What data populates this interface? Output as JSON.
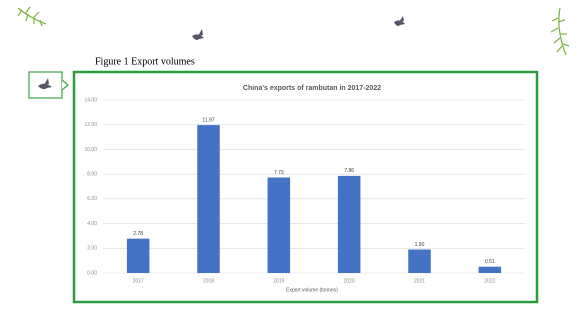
{
  "caption": "Figure 1 Export volumes",
  "chart_data": {
    "type": "bar",
    "title": "China's exports of rambutan in 2017-2022",
    "x_label": "Export volume (tonnes)",
    "categories": [
      "2017",
      "2018",
      "2019",
      "2020",
      "2021",
      "2022"
    ],
    "values": [
      2.78,
      11.97,
      7.73,
      7.86,
      1.9,
      0.51
    ],
    "value_labels": [
      "2.78",
      "11.97",
      "7.73",
      "7.86",
      "1.90",
      "0.51"
    ],
    "color": "#4472c4",
    "ylim": [
      0,
      14
    ],
    "yticks": [
      {
        "value": 0,
        "label": "0.00"
      },
      {
        "value": 2,
        "label": "2.00"
      },
      {
        "value": 4,
        "label": "4.00"
      },
      {
        "value": 6,
        "label": "6.00"
      },
      {
        "value": 8,
        "label": "8.00"
      },
      {
        "value": 10,
        "label": "10.00"
      },
      {
        "value": 12,
        "label": "12.00"
      },
      {
        "value": 14,
        "label": "14.00"
      }
    ],
    "grid": true
  }
}
